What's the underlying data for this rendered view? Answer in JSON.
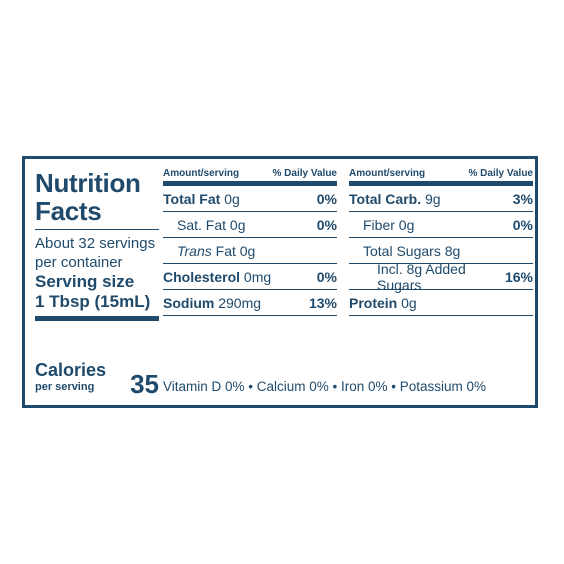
{
  "title": "Nutrition Facts",
  "servings_per_container": "About 32 servings per container",
  "serving_size_label": "Serving size",
  "serving_size_value": "1 Tbsp (15mL)",
  "calories_label": "Calories",
  "calories_sub": "per serving",
  "calories_value": "35",
  "headers": {
    "amount": "Amount/serving",
    "dv": "% Daily Value"
  },
  "left_rows": [
    {
      "name": "Total Fat",
      "amount": "0g",
      "dv": "0%"
    },
    {
      "name": "Sat. Fat",
      "amount": "0g",
      "dv": "0%"
    },
    {
      "name": "Trans",
      "amount": "Fat 0g",
      "dv": ""
    },
    {
      "name": "Cholesterol",
      "amount": "0mg",
      "dv": "0%"
    },
    {
      "name": "Sodium",
      "amount": "290mg",
      "dv": "13%"
    }
  ],
  "right_rows": [
    {
      "name": "Total Carb.",
      "amount": "9g",
      "dv": "3%"
    },
    {
      "name": "Fiber",
      "amount": "0g",
      "dv": "0%"
    },
    {
      "name": "Total Sugars",
      "amount": "8g",
      "dv": ""
    },
    {
      "name": "Incl. 8g Added Sugars",
      "amount": "",
      "dv": "16%"
    },
    {
      "name": "Protein",
      "amount": "0g",
      "dv": ""
    }
  ],
  "vitamins": "Vitamin D 0% • Calcium 0% • Iron 0% • Potassium 0%"
}
